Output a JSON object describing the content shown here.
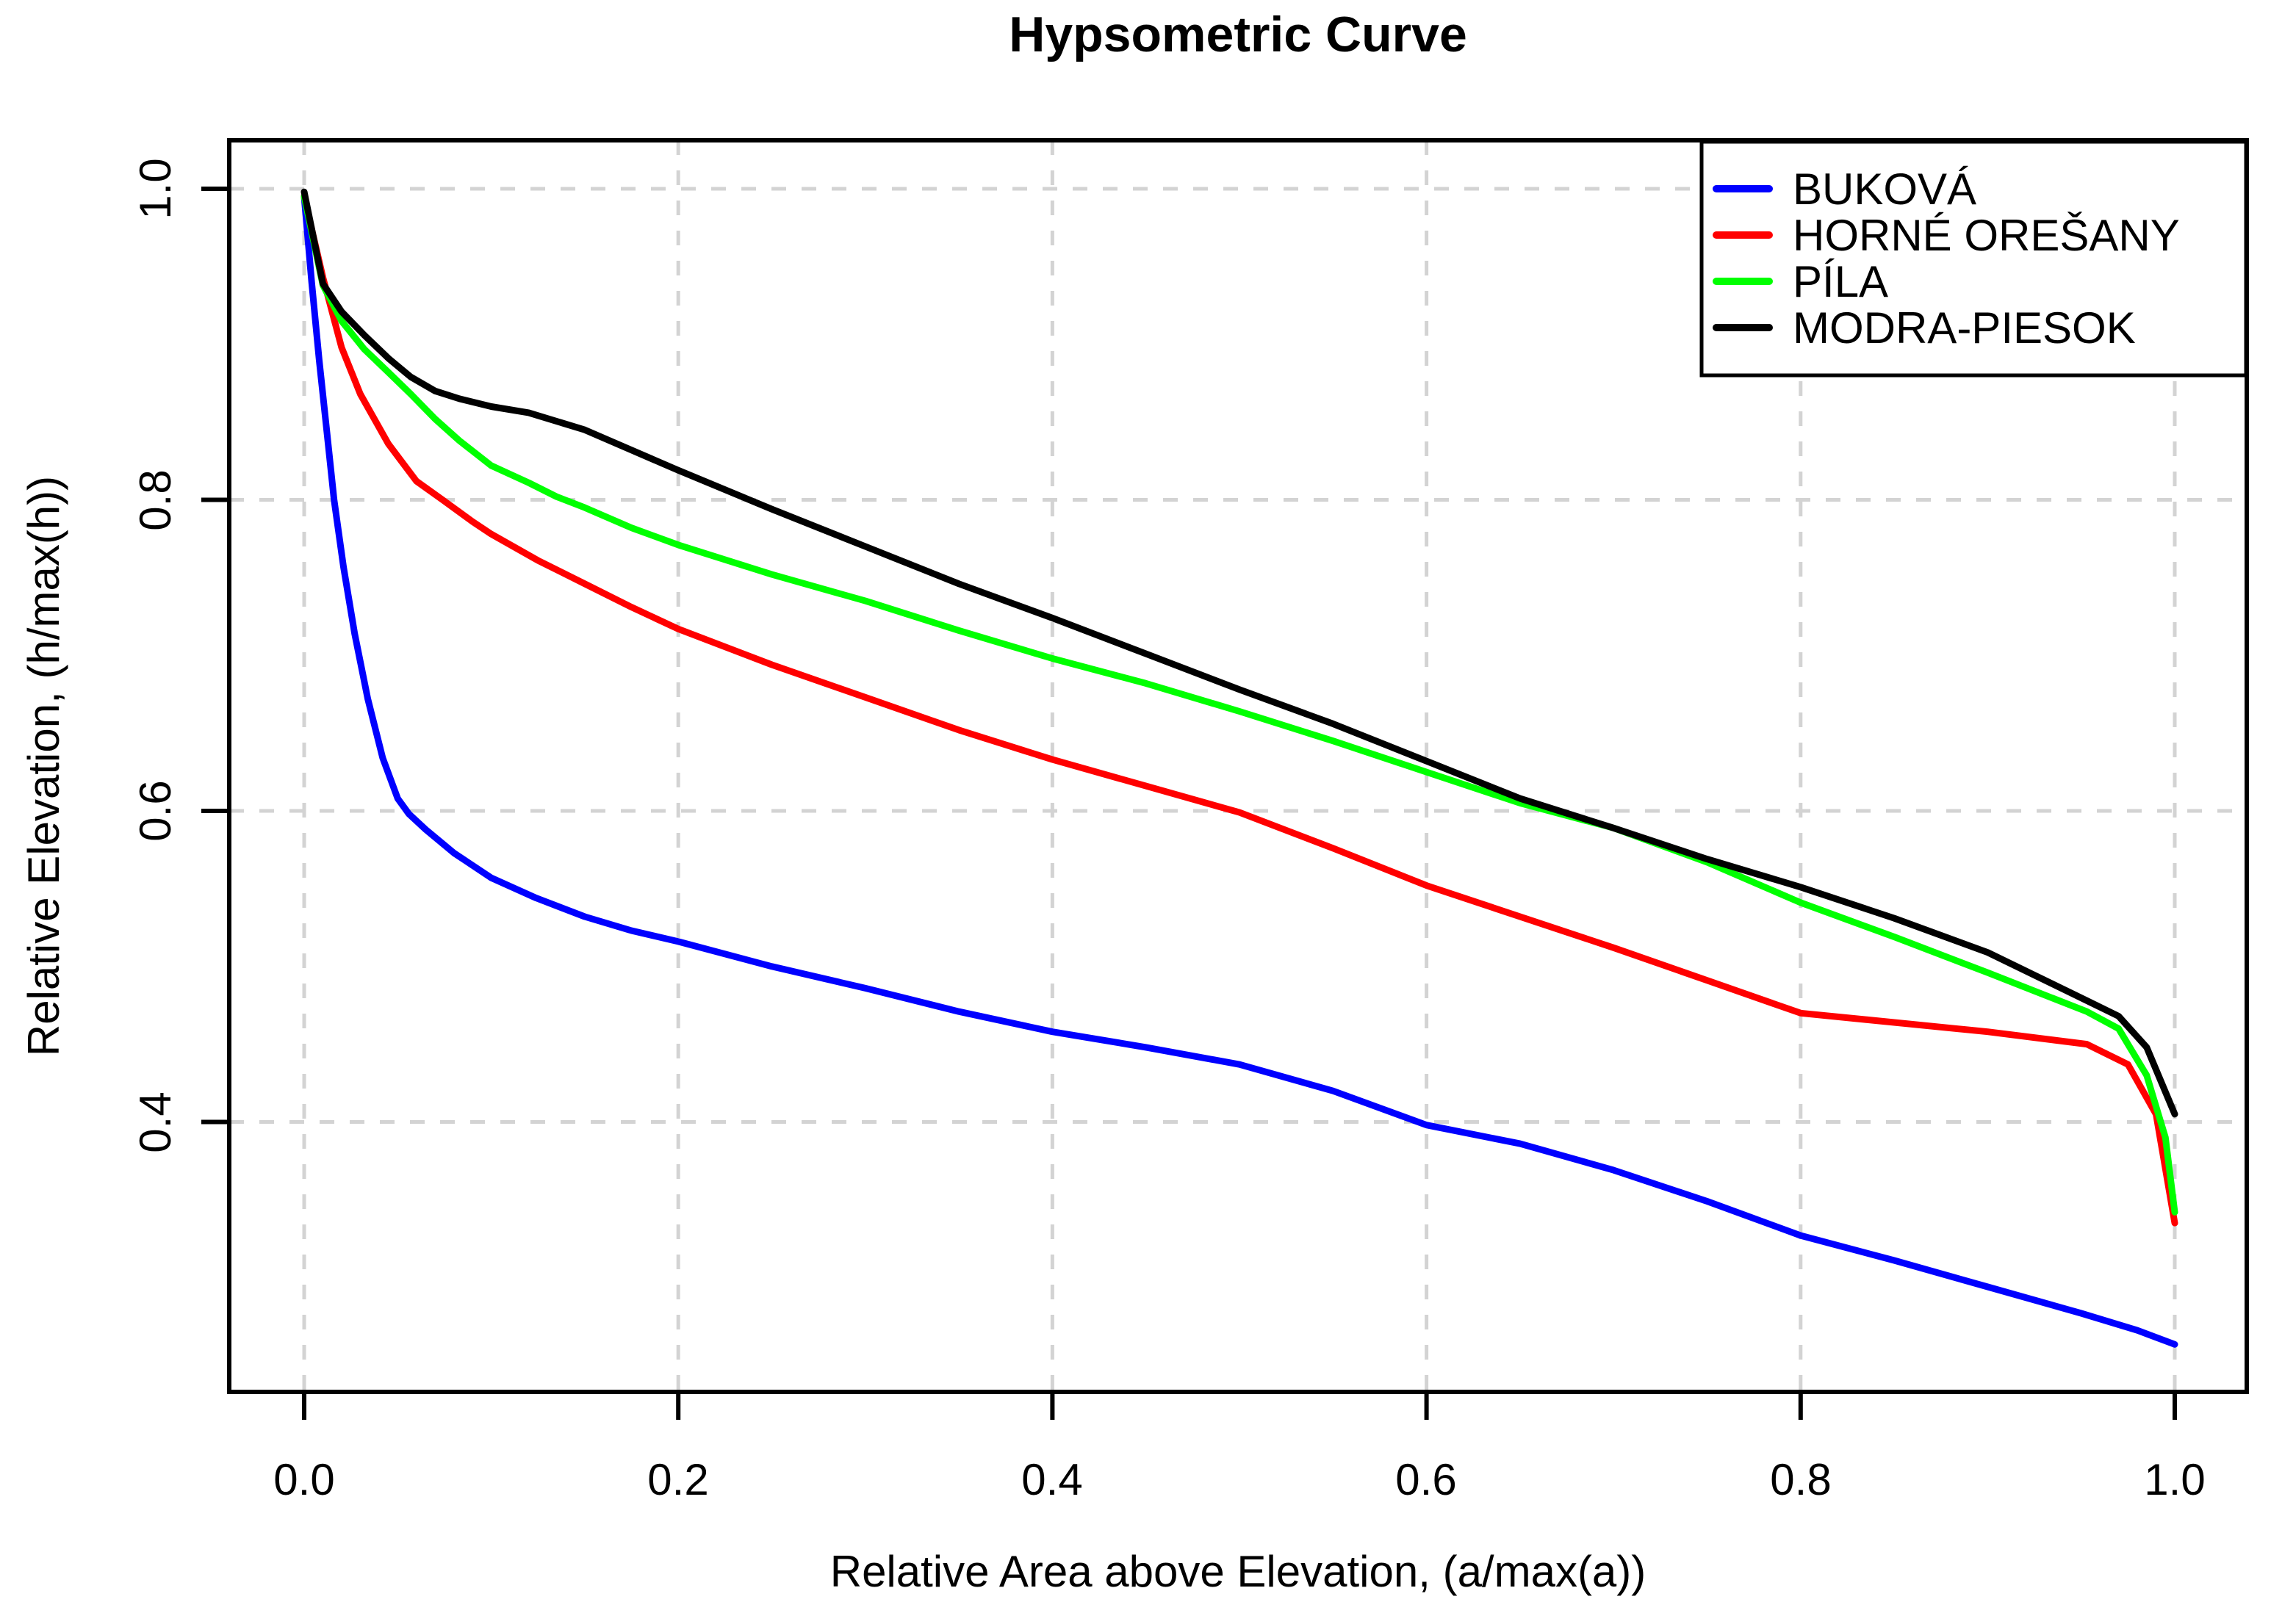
{
  "title": "Hypsometric Curve",
  "axes": {
    "x": {
      "label": "Relative Area above Elevation, (a/max(a))",
      "ticks": [
        "0.0",
        "0.2",
        "0.4",
        "0.6",
        "0.8",
        "1.0"
      ],
      "tick_values": [
        0.0,
        0.2,
        0.4,
        0.6,
        0.8,
        1.0
      ],
      "range": [
        -0.04,
        1.04
      ]
    },
    "y": {
      "label": "Relative Elevation, (h/max(h))",
      "ticks": [
        "0.4",
        "0.6",
        "0.8",
        "1.0"
      ],
      "tick_values": [
        0.4,
        0.6,
        0.8,
        1.0
      ],
      "range": [
        0.227,
        1.031
      ]
    }
  },
  "legend": {
    "position": "top-right",
    "items": [
      {
        "id": "bukova",
        "label": "BUKOVÁ",
        "color": "#0000FF"
      },
      {
        "id": "horne-oresany",
        "label": "HORNÉ OREŠANY",
        "color": "#FF0000"
      },
      {
        "id": "pila",
        "label": "PÍLA",
        "color": "#00FF00"
      },
      {
        "id": "modra-piesok",
        "label": "MODRA-PIESOK",
        "color": "#000000"
      }
    ]
  },
  "colors": {
    "background": "#FFFFFF",
    "frame": "#000000",
    "gridline": "#D3D3D3",
    "series_bukova": "#0000FF",
    "series_horne_oresany": "#FF0000",
    "series_pila": "#00FF00",
    "series_modra_piesok": "#000000"
  },
  "chart_data": {
    "type": "line",
    "title": "Hypsometric Curve",
    "xlabel": "Relative Area above Elevation, (a/max(a))",
    "ylabel": "Relative Elevation, (h/max(h))",
    "xlim": [
      -0.04,
      1.04
    ],
    "ylim": [
      0.227,
      1.031
    ],
    "grid": "dashed lightgray at every tick",
    "legend_position": "top-right",
    "series": [
      {
        "name": "BUKOVÁ",
        "id": "bukova",
        "color": "#0000FF",
        "points": [
          [
            0.0,
            0.995
          ],
          [
            0.004,
            0.94
          ],
          [
            0.008,
            0.89
          ],
          [
            0.012,
            0.845
          ],
          [
            0.016,
            0.8
          ],
          [
            0.021,
            0.757
          ],
          [
            0.027,
            0.714
          ],
          [
            0.034,
            0.672
          ],
          [
            0.042,
            0.634
          ],
          [
            0.05,
            0.608
          ],
          [
            0.056,
            0.598
          ],
          [
            0.065,
            0.588
          ],
          [
            0.08,
            0.573
          ],
          [
            0.1,
            0.557
          ],
          [
            0.124,
            0.544
          ],
          [
            0.15,
            0.532
          ],
          [
            0.175,
            0.523
          ],
          [
            0.2,
            0.516
          ],
          [
            0.25,
            0.5
          ],
          [
            0.3,
            0.486
          ],
          [
            0.35,
            0.471
          ],
          [
            0.4,
            0.458
          ],
          [
            0.45,
            0.448
          ],
          [
            0.5,
            0.437
          ],
          [
            0.55,
            0.42
          ],
          [
            0.6,
            0.398
          ],
          [
            0.65,
            0.386
          ],
          [
            0.7,
            0.369
          ],
          [
            0.75,
            0.349
          ],
          [
            0.8,
            0.327
          ],
          [
            0.85,
            0.311
          ],
          [
            0.9,
            0.294
          ],
          [
            0.95,
            0.277
          ],
          [
            0.98,
            0.266
          ],
          [
            1.0,
            0.257
          ]
        ]
      },
      {
        "name": "HORNÉ OREŠANY",
        "id": "horne-oresany",
        "color": "#FF0000",
        "points": [
          [
            0.0,
            0.995
          ],
          [
            0.01,
            0.943
          ],
          [
            0.02,
            0.898
          ],
          [
            0.03,
            0.868
          ],
          [
            0.045,
            0.836
          ],
          [
            0.06,
            0.812
          ],
          [
            0.074,
            0.8
          ],
          [
            0.09,
            0.786
          ],
          [
            0.1,
            0.778
          ],
          [
            0.125,
            0.761
          ],
          [
            0.15,
            0.746
          ],
          [
            0.175,
            0.731
          ],
          [
            0.2,
            0.717
          ],
          [
            0.25,
            0.694
          ],
          [
            0.3,
            0.673
          ],
          [
            0.35,
            0.652
          ],
          [
            0.4,
            0.633
          ],
          [
            0.45,
            0.616
          ],
          [
            0.5,
            0.599
          ],
          [
            0.55,
            0.576
          ],
          [
            0.6,
            0.552
          ],
          [
            0.65,
            0.532
          ],
          [
            0.7,
            0.512
          ],
          [
            0.75,
            0.491
          ],
          [
            0.8,
            0.47
          ],
          [
            0.85,
            0.464
          ],
          [
            0.9,
            0.458
          ],
          [
            0.953,
            0.45
          ],
          [
            0.975,
            0.437
          ],
          [
            0.99,
            0.405
          ],
          [
            1.0,
            0.335
          ]
        ]
      },
      {
        "name": "PÍLA",
        "id": "pila",
        "color": "#00FF00",
        "points": [
          [
            0.0,
            0.995
          ],
          [
            0.01,
            0.938
          ],
          [
            0.02,
            0.915
          ],
          [
            0.032,
            0.897
          ],
          [
            0.045,
            0.882
          ],
          [
            0.057,
            0.868
          ],
          [
            0.07,
            0.852
          ],
          [
            0.083,
            0.838
          ],
          [
            0.1,
            0.822
          ],
          [
            0.12,
            0.811
          ],
          [
            0.135,
            0.802
          ],
          [
            0.15,
            0.795
          ],
          [
            0.175,
            0.782
          ],
          [
            0.2,
            0.771
          ],
          [
            0.25,
            0.752
          ],
          [
            0.3,
            0.735
          ],
          [
            0.35,
            0.716
          ],
          [
            0.4,
            0.698
          ],
          [
            0.45,
            0.682
          ],
          [
            0.5,
            0.664
          ],
          [
            0.55,
            0.645
          ],
          [
            0.6,
            0.625
          ],
          [
            0.65,
            0.605
          ],
          [
            0.7,
            0.589
          ],
          [
            0.75,
            0.567
          ],
          [
            0.8,
            0.541
          ],
          [
            0.85,
            0.519
          ],
          [
            0.9,
            0.496
          ],
          [
            0.953,
            0.471
          ],
          [
            0.97,
            0.46
          ],
          [
            0.985,
            0.43
          ],
          [
            0.995,
            0.39
          ],
          [
            1.0,
            0.342
          ]
        ]
      },
      {
        "name": "MODRA-PIESOK",
        "id": "modra-piesok",
        "color": "#000000",
        "points": [
          [
            0.0,
            0.998
          ],
          [
            0.01,
            0.939
          ],
          [
            0.02,
            0.921
          ],
          [
            0.032,
            0.906
          ],
          [
            0.045,
            0.891
          ],
          [
            0.057,
            0.879
          ],
          [
            0.07,
            0.87
          ],
          [
            0.083,
            0.865
          ],
          [
            0.1,
            0.86
          ],
          [
            0.12,
            0.856
          ],
          [
            0.15,
            0.845
          ],
          [
            0.175,
            0.832
          ],
          [
            0.2,
            0.819
          ],
          [
            0.25,
            0.794
          ],
          [
            0.3,
            0.77
          ],
          [
            0.35,
            0.746
          ],
          [
            0.4,
            0.724
          ],
          [
            0.45,
            0.701
          ],
          [
            0.5,
            0.678
          ],
          [
            0.55,
            0.656
          ],
          [
            0.6,
            0.632
          ],
          [
            0.65,
            0.608
          ],
          [
            0.7,
            0.589
          ],
          [
            0.75,
            0.569
          ],
          [
            0.8,
            0.551
          ],
          [
            0.85,
            0.531
          ],
          [
            0.9,
            0.509
          ],
          [
            0.953,
            0.478
          ],
          [
            0.97,
            0.468
          ],
          [
            0.985,
            0.448
          ],
          [
            1.0,
            0.405
          ]
        ]
      }
    ]
  }
}
